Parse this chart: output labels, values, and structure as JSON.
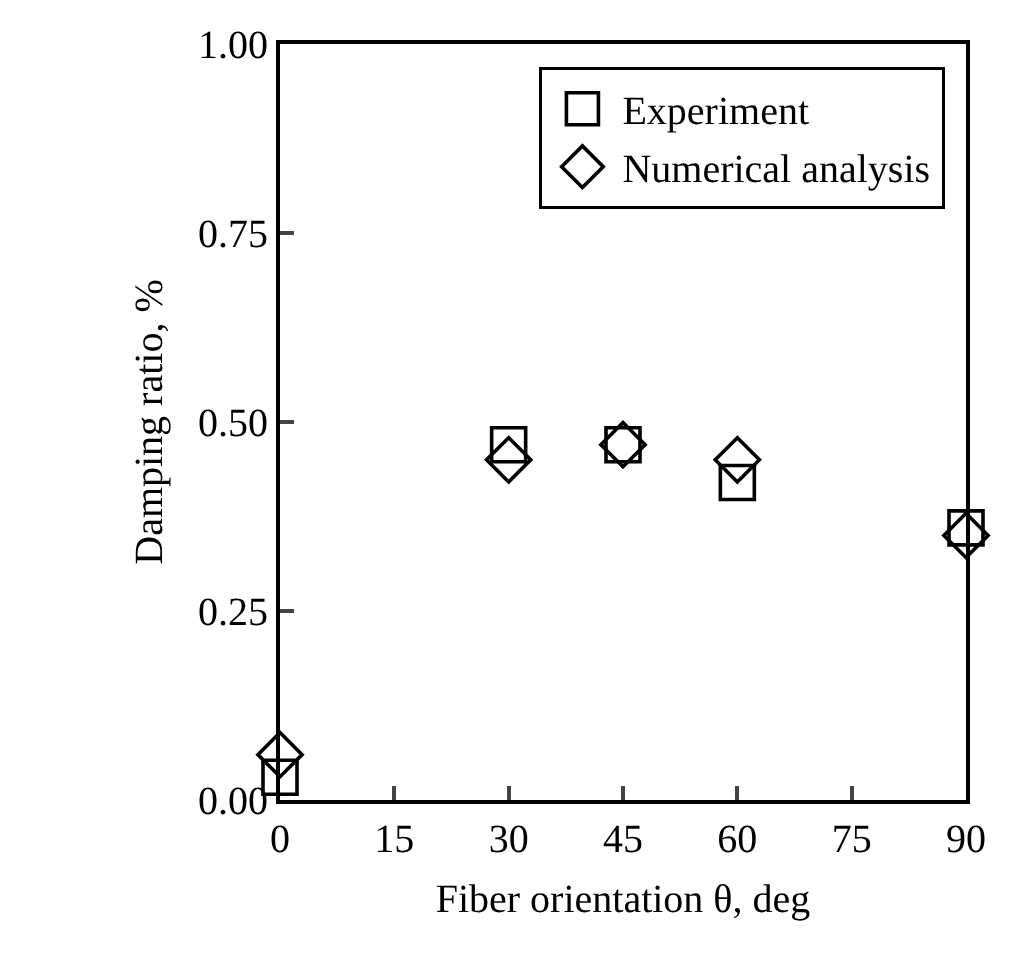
{
  "chart_data": {
    "type": "scatter",
    "xlabel": "Fiber orientation θ, deg",
    "ylabel": "Damping ratio, %",
    "x": [
      0,
      30,
      45,
      60,
      90
    ],
    "xlim": [
      0,
      90
    ],
    "xticks": [
      0,
      15,
      30,
      45,
      60,
      75,
      90
    ],
    "ylim": [
      0,
      1
    ],
    "yticks": [
      {
        "value": 0,
        "label": "0.00"
      },
      {
        "value": 0.25,
        "label": "0.25"
      },
      {
        "value": 0.5,
        "label": "0.50"
      },
      {
        "value": 0.75,
        "label": "0.75"
      },
      {
        "value": 1,
        "label": "1.00"
      }
    ],
    "series": [
      {
        "name": "Experiment",
        "color": "#000000",
        "marker": "square",
        "values": [
          0.03,
          0.47,
          0.47,
          0.42,
          0.36
        ]
      },
      {
        "name": "Numerical analysis",
        "color": "#000000",
        "marker": "diamond",
        "values": [
          0.06,
          0.45,
          0.47,
          0.45,
          0.35
        ]
      }
    ],
    "grid": false,
    "legend": "top right"
  }
}
